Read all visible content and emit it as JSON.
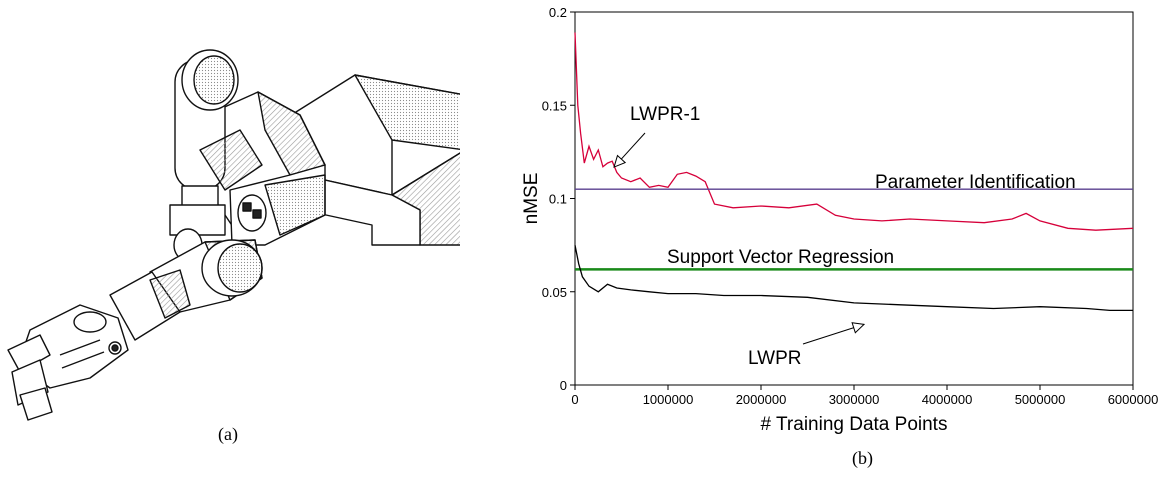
{
  "panels": {
    "a_label": "(a)",
    "b_label": "(b)"
  },
  "colors": {
    "lwpr1": "#d6003a",
    "parameter_identification": "#5a3f8f",
    "support_vector_regression": "#1a8a1a",
    "lwpr": "#000000"
  },
  "chart_data": {
    "type": "line",
    "title": "",
    "xlabel": "# Training Data Points",
    "ylabel": "nMSE",
    "xlim": [
      0,
      6000000
    ],
    "ylim": [
      0,
      0.2
    ],
    "x_ticks": [
      0,
      1000000,
      2000000,
      3000000,
      4000000,
      5000000,
      6000000
    ],
    "x_tick_labels": [
      "0",
      "1000000",
      "2000000",
      "3000000",
      "4000000",
      "5000000",
      "6000000"
    ],
    "y_ticks": [
      0,
      0.05,
      0.1,
      0.15,
      0.2
    ],
    "y_tick_labels": [
      "0",
      "0.05",
      "0.1",
      "0.15",
      "0.2"
    ],
    "grid": false,
    "series": [
      {
        "name": "LWPR-1",
        "color": "#d6003a",
        "x": [
          0,
          30000,
          60000,
          100000,
          150000,
          200000,
          250000,
          300000,
          350000,
          400000,
          450000,
          500000,
          600000,
          700000,
          800000,
          900000,
          1000000,
          1100000,
          1200000,
          1300000,
          1400000,
          1500000,
          1700000,
          2000000,
          2300000,
          2600000,
          2800000,
          3000000,
          3300000,
          3600000,
          4000000,
          4400000,
          4700000,
          4850000,
          5000000,
          5300000,
          5600000,
          6000000
        ],
        "y": [
          0.189,
          0.15,
          0.135,
          0.119,
          0.128,
          0.121,
          0.126,
          0.117,
          0.119,
          0.12,
          0.114,
          0.111,
          0.109,
          0.111,
          0.106,
          0.107,
          0.106,
          0.113,
          0.114,
          0.112,
          0.109,
          0.097,
          0.095,
          0.096,
          0.095,
          0.097,
          0.091,
          0.089,
          0.088,
          0.089,
          0.088,
          0.087,
          0.089,
          0.092,
          0.088,
          0.084,
          0.083,
          0.084
        ]
      },
      {
        "name": "Parameter Identification",
        "color": "#5a3f8f",
        "x": [
          0,
          6000000
        ],
        "y": [
          0.105,
          0.105
        ]
      },
      {
        "name": "Support Vector Regression",
        "color": "#1a8a1a",
        "x": [
          0,
          6000000
        ],
        "y": [
          0.062,
          0.062
        ]
      },
      {
        "name": "LWPR",
        "color": "#000000",
        "x": [
          0,
          40000,
          80000,
          150000,
          250000,
          350000,
          450000,
          600000,
          800000,
          1000000,
          1300000,
          1600000,
          2000000,
          2500000,
          3000000,
          3500000,
          4000000,
          4500000,
          5000000,
          5500000,
          5750000,
          6000000
        ],
        "y": [
          0.075,
          0.065,
          0.058,
          0.053,
          0.05,
          0.054,
          0.052,
          0.051,
          0.05,
          0.049,
          0.049,
          0.048,
          0.048,
          0.047,
          0.044,
          0.043,
          0.042,
          0.041,
          0.042,
          0.041,
          0.04,
          0.04
        ]
      }
    ],
    "annotations": [
      {
        "text": "LWPR-1",
        "target": "LWPR-1",
        "arrow_to": [
          420000,
          0.119
        ]
      },
      {
        "text": "Parameter Identification"
      },
      {
        "text": "Support Vector Regression"
      },
      {
        "text": "LWPR",
        "target": "LWPR",
        "arrow_to": [
          3000000,
          0.04
        ]
      }
    ]
  }
}
